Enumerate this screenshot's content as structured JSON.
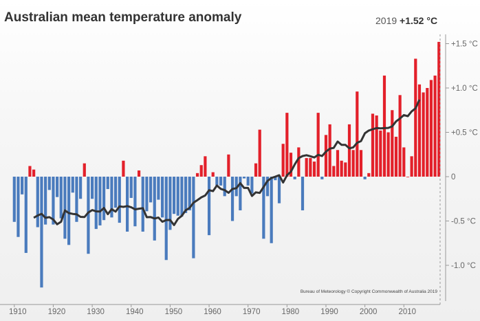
{
  "chart_data": {
    "type": "bar",
    "title": "Australian mean temperature anomaly",
    "latest": {
      "year_label": "2019",
      "value_label": "+1.52 °C"
    },
    "credit": "Bureau of Meteorology © Copyright Commonwealth of Australia 2019",
    "x_start_year": 1910,
    "values": [
      -0.51,
      -0.68,
      -0.2,
      -0.86,
      0.12,
      0.08,
      -0.57,
      -1.25,
      -0.54,
      -0.15,
      -0.54,
      -0.23,
      -0.47,
      -0.7,
      -0.77,
      -0.18,
      -0.51,
      -0.25,
      0.15,
      -0.87,
      -0.25,
      -0.59,
      -0.55,
      -0.49,
      -0.14,
      -0.46,
      -0.35,
      -0.52,
      0.18,
      -0.62,
      -0.24,
      -0.56,
      0.07,
      -0.62,
      -0.39,
      -0.29,
      -0.72,
      -0.26,
      -0.46,
      -0.94,
      -0.6,
      -0.42,
      -0.44,
      -0.45,
      -0.41,
      -0.38,
      -0.92,
      0.04,
      0.13,
      0.23,
      -0.66,
      0.05,
      -0.1,
      -0.1,
      -0.22,
      0.25,
      -0.5,
      -0.22,
      -0.38,
      -0.02,
      -0.1,
      -0.19,
      0.15,
      0.53,
      -0.7,
      -0.22,
      -0.75,
      -0.04,
      -0.3,
      0.37,
      0.72,
      0.27,
      -0.03,
      0.33,
      -0.38,
      0.21,
      0.21,
      0.17,
      0.72,
      -0.03,
      0.47,
      0.59,
      0.12,
      0.3,
      0.18,
      0.16,
      0.59,
      0.3,
      0.96,
      0.3,
      -0.03,
      0.04,
      0.71,
      0.69,
      0.52,
      1.14,
      0.5,
      0.75,
      0.45,
      0.92,
      0.33,
      0.0,
      0.23,
      1.33,
      1.04,
      0.95,
      1.0,
      1.09,
      1.14,
      1.52
    ],
    "trend": {
      "window_years": 11
    },
    "x_ticks": [
      "1910",
      "1920",
      "1930",
      "1940",
      "1950",
      "1960",
      "1970",
      "1980",
      "1990",
      "2000",
      "2010"
    ],
    "y_ticks": [
      {
        "value": 1.5,
        "label": "+1.5 °C"
      },
      {
        "value": 1.0,
        "label": "+1.0 °C"
      },
      {
        "value": 0.5,
        "label": "+0.5 °C"
      },
      {
        "value": 0,
        "label": "0"
      },
      {
        "value": -0.5,
        "label": "-0.5 °C"
      },
      {
        "value": -1.0,
        "label": "-1.0 °C"
      }
    ],
    "ylim": [
      -1.4,
      1.6
    ],
    "xlim": [
      1910,
      2019
    ],
    "grid": false,
    "colors": {
      "positive": "#e3202a",
      "negative": "#4a7bbd",
      "trend": "#333333"
    }
  }
}
